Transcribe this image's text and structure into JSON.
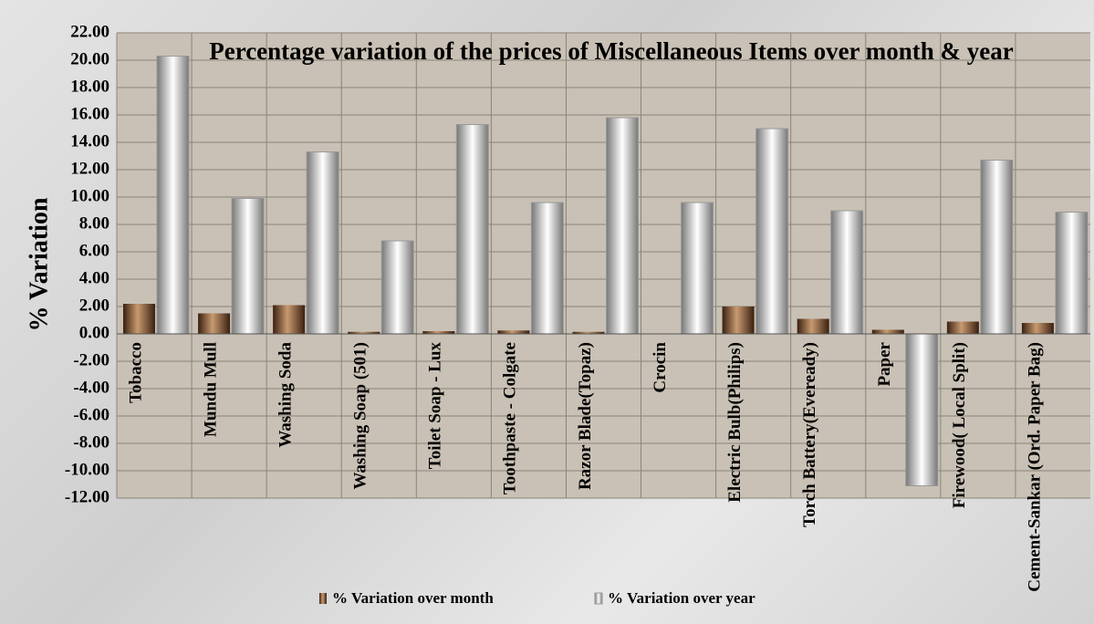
{
  "chart_data": {
    "type": "bar",
    "title": "Percentage variation of the prices of Miscellaneous Items over month & year",
    "y_label": "% Variation",
    "categories": [
      "Tobacco",
      "Mundu Mull",
      "Washing Soda",
      "Washing Soap (501)",
      "Toilet Soap - Lux",
      "Toothpaste - Colgate",
      "Razor Blade(Topaz)",
      "Crocin",
      "Electric Bulb(Philips)",
      "Torch Battery(Eveready)",
      "Paper",
      "Firewood( Local Split)",
      "Cement-Sankar (Ord. Paper Bag)"
    ],
    "series": [
      {
        "name": "% Variation over month",
        "color": "#7a4a2a",
        "values": [
          2.2,
          1.5,
          2.1,
          0.15,
          0.2,
          0.25,
          0.15,
          0,
          2.0,
          1.1,
          0.3,
          0.9,
          0.8
        ]
      },
      {
        "name": "% Variation over year",
        "color": "#e8e8e8",
        "values": [
          20.3,
          9.9,
          13.3,
          6.8,
          15.3,
          9.6,
          15.8,
          9.6,
          15.0,
          9.0,
          -11.1,
          12.7,
          8.9
        ]
      }
    ],
    "ylim": [
      -12,
      22
    ],
    "yticks": [
      {
        "value": -12,
        "label": "-12.00"
      },
      {
        "value": -10,
        "label": "-10.00"
      },
      {
        "value": -8,
        "label": "-8.00"
      },
      {
        "value": -6,
        "label": "-6.00"
      },
      {
        "value": -4,
        "label": "-4.00"
      },
      {
        "value": -2,
        "label": "-2.00"
      },
      {
        "value": 0,
        "label": "0.00"
      },
      {
        "value": 2,
        "label": "2.00"
      },
      {
        "value": 4,
        "label": "4.00"
      },
      {
        "value": 6,
        "label": "6.00"
      },
      {
        "value": 8,
        "label": "8.00"
      },
      {
        "value": 10,
        "label": "10.00"
      },
      {
        "value": 12,
        "label": "12.00"
      },
      {
        "value": 14,
        "label": "14.00"
      },
      {
        "value": 16,
        "label": "16.00"
      },
      {
        "value": 18,
        "label": "18.00"
      },
      {
        "value": 20,
        "label": "20.00"
      },
      {
        "value": 22,
        "label": "22.00"
      }
    ],
    "grid": true,
    "legend": "bottom"
  }
}
